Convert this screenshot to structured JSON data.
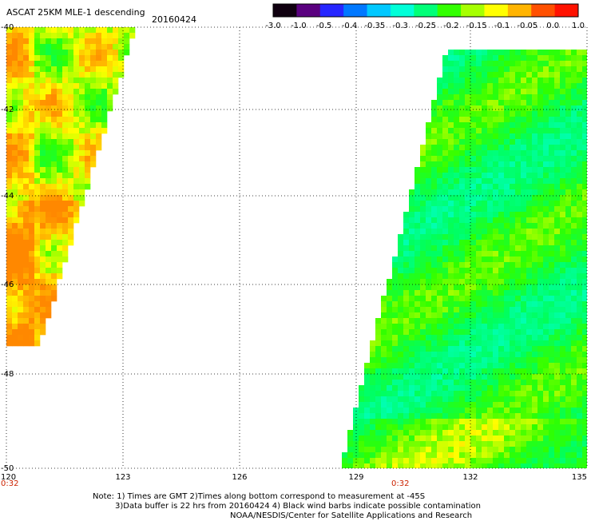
{
  "title": "ASCAT 25KM MLE-1 descending",
  "date": "20160424",
  "colorbar": {
    "colors": [
      "#100010",
      "#5a007f",
      "#2626ff",
      "#0078ff",
      "#00c8ff",
      "#00ffd8",
      "#00ff78",
      "#32ff00",
      "#a6ff00",
      "#ffff00",
      "#ffb400",
      "#ff5000",
      "#ff1200"
    ],
    "tick_labels": [
      "-3.0",
      "-1.0",
      "-0.5",
      "-0.4",
      "-0.35",
      "-0.3",
      "-0.25",
      "-0.2",
      "-0.15",
      "-0.1",
      "-0.05",
      "0.0",
      "1.0"
    ]
  },
  "map": {
    "lon_ticks": [
      "120",
      "123",
      "126",
      "129",
      "132",
      "135"
    ],
    "lat_ticks": [
      "-40",
      "-42",
      "-44",
      "-46",
      "-48",
      "-50"
    ],
    "grid": "dotted",
    "time_labels": [
      "0:32",
      "0:32"
    ]
  },
  "notes": [
    "Note: 1) Times are GMT 2)Times along bottom correspond to measurement at -45S",
    "3)Data buffer is 22 hrs from 20160424 4) Black wind barbs indicate possible contamination",
    "NOAA/NESDIS/Center for Satellite Applications and Research"
  ]
}
